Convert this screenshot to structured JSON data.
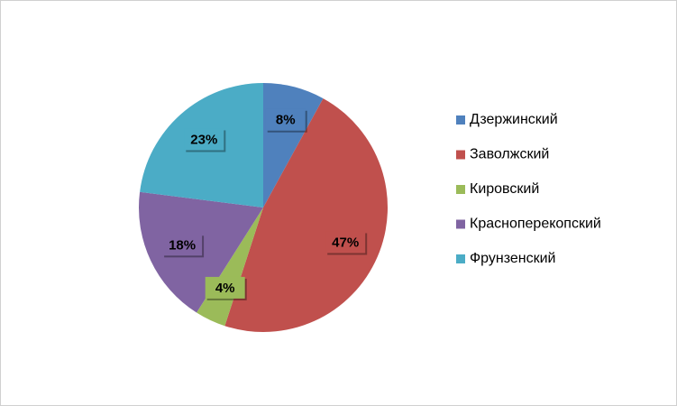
{
  "chart_data": {
    "type": "pie",
    "categories": [
      "Дзержинский",
      "Заволжский",
      "Кировский",
      "Краснoперекопский",
      "Фрунзенский"
    ],
    "values": [
      8,
      47,
      4,
      18,
      23
    ],
    "value_labels": [
      "8%",
      "47%",
      "4%",
      "18%",
      "23%"
    ],
    "colors": [
      "#4f81bd",
      "#c0504d",
      "#9bbb59",
      "#8064a2",
      "#4bacc6"
    ],
    "legend": "right"
  }
}
